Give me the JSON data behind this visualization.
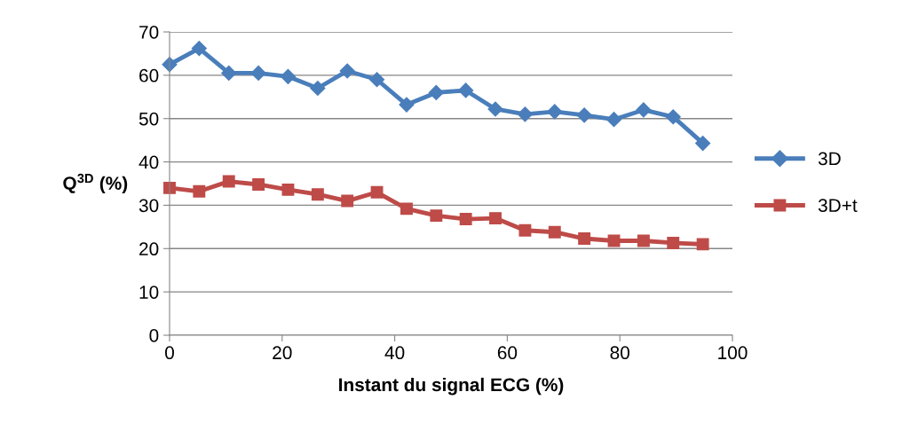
{
  "chart_data": {
    "type": "line",
    "xlabel": "Instant du signal ECG (%)",
    "ylabel": "Q$^{3D}$ (%)",
    "x": [
      0,
      5.26,
      10.53,
      15.79,
      21.05,
      26.32,
      31.58,
      36.84,
      42.11,
      47.37,
      52.63,
      57.89,
      63.16,
      68.42,
      73.68,
      78.95,
      84.21,
      89.47,
      94.74
    ],
    "series": [
      {
        "name": "3D",
        "color": "#4a7ebb",
        "marker": "diamond",
        "values": [
          62.5,
          66.2,
          60.5,
          60.5,
          59.7,
          57,
          61,
          59,
          53.2,
          56,
          56.5,
          52.2,
          51,
          51.6,
          50.8,
          49.8,
          52,
          50.4,
          44.3
        ]
      },
      {
        "name": "3D+t",
        "color": "#be4b48",
        "marker": "square",
        "values": [
          34,
          33.2,
          35.5,
          34.8,
          33.6,
          32.5,
          31,
          33,
          29.2,
          27.6,
          26.8,
          27,
          24.2,
          23.8,
          22.3,
          21.8,
          21.8,
          21.3,
          21
        ]
      }
    ],
    "xlim": [
      0,
      100
    ],
    "xticks": [
      0,
      20,
      40,
      60,
      80,
      100
    ],
    "ylim": [
      0,
      70
    ],
    "yticks": [
      0,
      10,
      20,
      30,
      40,
      50,
      60,
      70
    ],
    "grid": "y",
    "legend": "right",
    "line_style": "solid"
  }
}
